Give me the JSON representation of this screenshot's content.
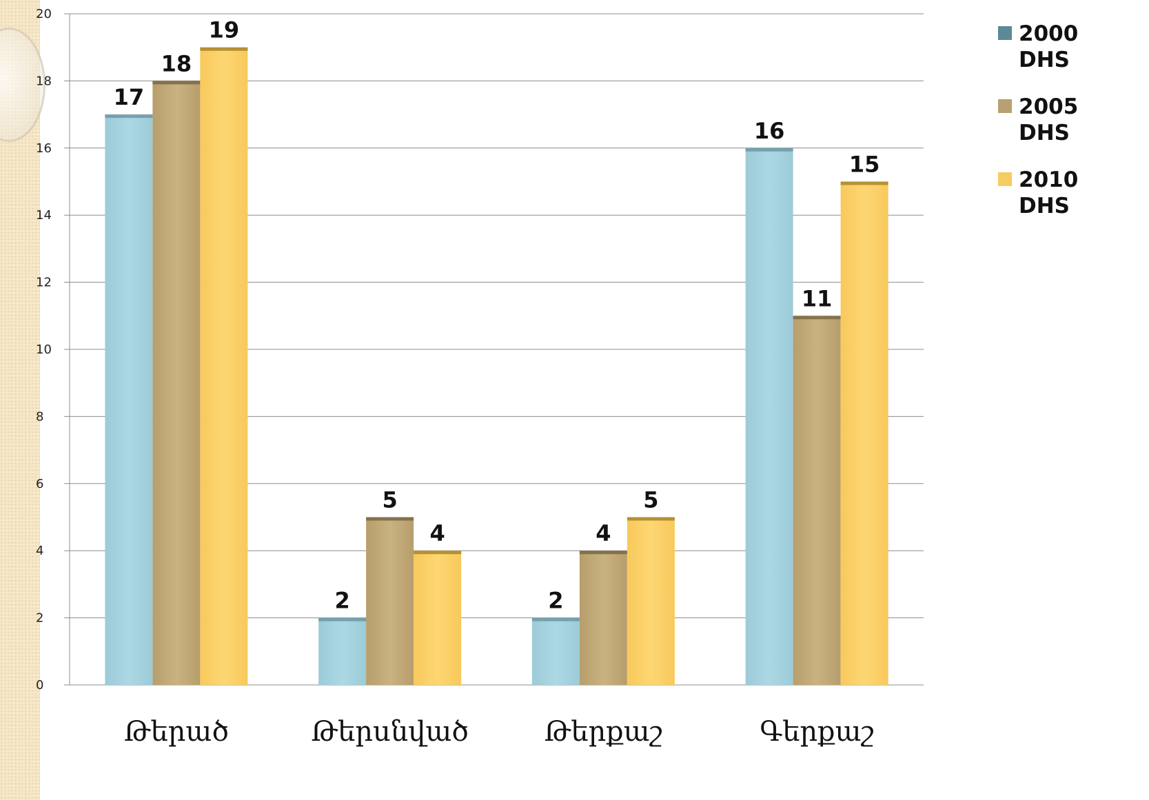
{
  "chart_data": {
    "type": "bar",
    "categories": [
      "Թերած",
      "Թերսնված",
      "Թերքաշ",
      "Գերքաշ"
    ],
    "series": [
      {
        "name": "2000 DHS",
        "values": [
          17,
          2,
          2,
          16
        ],
        "color": "#a9d4e0",
        "legend_color": "#5b8a96"
      },
      {
        "name": "2005 DHS",
        "values": [
          18,
          5,
          4,
          11
        ],
        "color": "#c6ae7c",
        "legend_color": "#b8a070"
      },
      {
        "name": "2010 DHS",
        "values": [
          19,
          4,
          5,
          15
        ],
        "color": "#fcd36e",
        "legend_color": "#f6cc60"
      }
    ],
    "ylim": [
      0,
      20
    ],
    "yticks": [
      "0",
      "2",
      "4",
      "6",
      "8",
      "10",
      "12",
      "14",
      "16",
      "18",
      "20"
    ],
    "grid": true,
    "legend": "right",
    "title": "",
    "xlabel": "",
    "ylabel": ""
  }
}
